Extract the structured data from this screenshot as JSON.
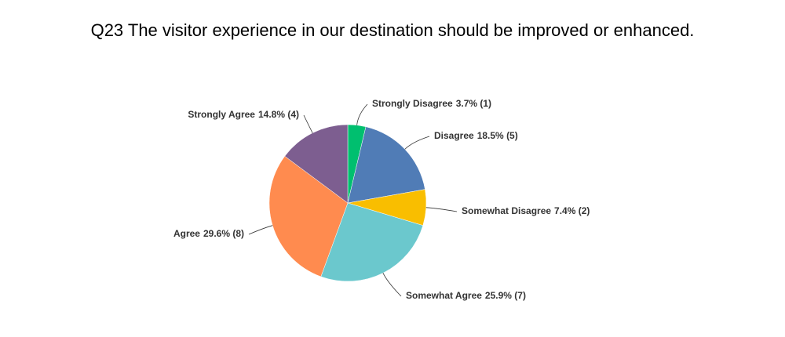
{
  "chart_data": {
    "type": "pie",
    "title": "Q23 The visitor experience in our destination should be improved or enhanced.",
    "categories": [
      "Strongly Disagree",
      "Disagree",
      "Somewhat Disagree",
      "Somewhat Agree",
      "Agree",
      "Strongly Agree"
    ],
    "values": [
      3.7,
      18.5,
      7.4,
      25.9,
      29.6,
      14.8
    ],
    "value_labels": [
      "3.7% (1)",
      "18.5% (5)",
      "7.4% (2)",
      "25.9% (7)",
      "29.6% (8)",
      "14.8% (4)"
    ],
    "colors": [
      "#00bf6f",
      "#507cb6",
      "#f9be00",
      "#6bc8cd",
      "#ff8b4f",
      "#7d5e90"
    ]
  }
}
